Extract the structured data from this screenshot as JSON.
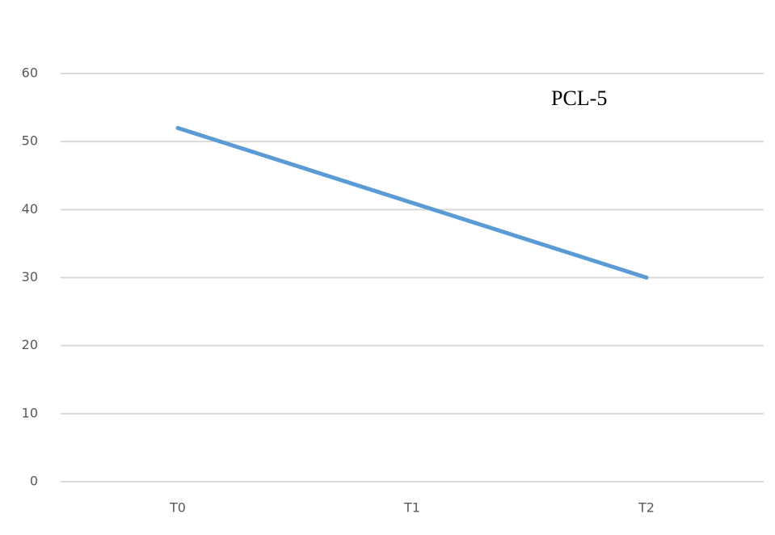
{
  "chart_data": {
    "type": "line",
    "categories": [
      "T0",
      "T1",
      "T2"
    ],
    "series": [
      {
        "name": "PCL-5",
        "color": "#5b9bd5",
        "values": [
          52,
          41,
          30
        ]
      }
    ],
    "ylim": [
      0,
      60
    ],
    "yticks": [
      0,
      10,
      20,
      30,
      40,
      50,
      60
    ],
    "grid": true
  }
}
